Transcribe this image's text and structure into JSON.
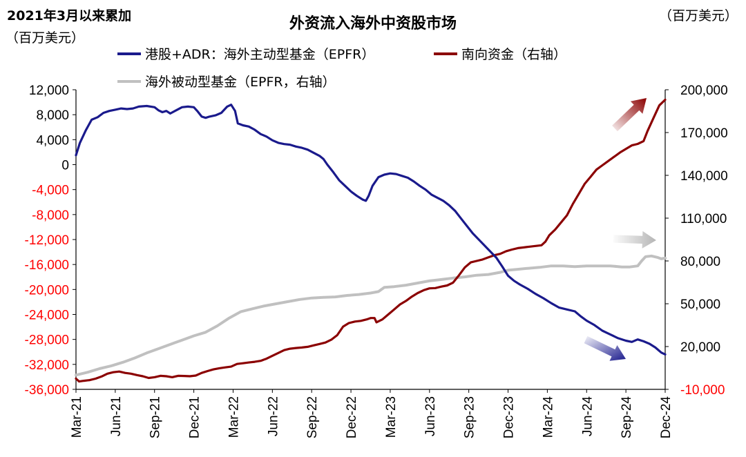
{
  "chart_data": {
    "type": "line",
    "title": "外资流入海外中资股市场",
    "left_note": "2021年3月以来累加",
    "left_unit": "（百万美元）",
    "right_unit": "（百万美元）",
    "x_labels": [
      "Mar-21",
      "Jun-21",
      "Sep-21",
      "Dec-21",
      "Mar-22",
      "Jun-22",
      "Sep-22",
      "Dec-22",
      "Mar-23",
      "Jun-23",
      "Sep-23",
      "Dec-23",
      "Mar-24",
      "Jun-24",
      "Sep-24",
      "Dec-24"
    ],
    "y_left": {
      "range": [
        -36000,
        12000
      ],
      "ticks": [
        "12,000",
        "8,000",
        "4,000",
        "0",
        "-4,000",
        "-8,000",
        "-12,000",
        "-16,000",
        "-20,000",
        "-24,000",
        "-28,000",
        "-32,000",
        "-36,000"
      ],
      "positive_color": "#000000",
      "negative_color": "#ff0000"
    },
    "y_right": {
      "range": [
        -10000,
        200000
      ],
      "ticks": [
        "200,000",
        "170,000",
        "140,000",
        "110,000",
        "80,000",
        "50,000",
        "20,000",
        "-10,000"
      ],
      "negative_color": "#ff0000"
    },
    "series": [
      {
        "name": "港股+ADR：海外主动型基金（EPFR）",
        "axis": "left",
        "color": "#1a1a8c",
        "points": [
          [
            0,
            1500
          ],
          [
            0.1,
            3500
          ],
          [
            0.25,
            5500
          ],
          [
            0.4,
            7200
          ],
          [
            0.55,
            7600
          ],
          [
            0.7,
            8300
          ],
          [
            0.85,
            8600
          ],
          [
            1.0,
            8800
          ],
          [
            1.15,
            9000
          ],
          [
            1.3,
            8900
          ],
          [
            1.45,
            9000
          ],
          [
            1.6,
            9300
          ],
          [
            1.8,
            9400
          ],
          [
            2.0,
            9200
          ],
          [
            2.1,
            8700
          ],
          [
            2.2,
            8400
          ],
          [
            2.3,
            8600
          ],
          [
            2.4,
            8200
          ],
          [
            2.55,
            8700
          ],
          [
            2.7,
            9200
          ],
          [
            2.85,
            9300
          ],
          [
            3.0,
            9200
          ],
          [
            3.1,
            8500
          ],
          [
            3.2,
            7700
          ],
          [
            3.3,
            7500
          ],
          [
            3.4,
            7700
          ],
          [
            3.55,
            7900
          ],
          [
            3.7,
            8300
          ],
          [
            3.85,
            9300
          ],
          [
            3.95,
            9600
          ],
          [
            4.05,
            8600
          ],
          [
            4.12,
            6600
          ],
          [
            4.25,
            6300
          ],
          [
            4.4,
            6100
          ],
          [
            4.55,
            5600
          ],
          [
            4.7,
            4900
          ],
          [
            4.85,
            4500
          ],
          [
            5.0,
            3900
          ],
          [
            5.15,
            3500
          ],
          [
            5.3,
            3300
          ],
          [
            5.45,
            3200
          ],
          [
            5.6,
            2900
          ],
          [
            5.75,
            2700
          ],
          [
            5.9,
            2400
          ],
          [
            6.05,
            1900
          ],
          [
            6.2,
            1400
          ],
          [
            6.3,
            900
          ],
          [
            6.4,
            0
          ],
          [
            6.55,
            -1200
          ],
          [
            6.7,
            -2500
          ],
          [
            6.85,
            -3400
          ],
          [
            7.0,
            -4300
          ],
          [
            7.15,
            -5000
          ],
          [
            7.3,
            -5600
          ],
          [
            7.38,
            -5800
          ],
          [
            7.45,
            -5000
          ],
          [
            7.55,
            -3400
          ],
          [
            7.7,
            -2000
          ],
          [
            7.85,
            -1600
          ],
          [
            8.0,
            -1400
          ],
          [
            8.15,
            -1500
          ],
          [
            8.3,
            -1800
          ],
          [
            8.45,
            -2100
          ],
          [
            8.6,
            -2700
          ],
          [
            8.75,
            -3400
          ],
          [
            8.9,
            -4000
          ],
          [
            9.05,
            -4800
          ],
          [
            9.2,
            -5300
          ],
          [
            9.35,
            -5800
          ],
          [
            9.5,
            -6500
          ],
          [
            9.65,
            -7400
          ],
          [
            9.8,
            -8600
          ],
          [
            9.95,
            -9800
          ],
          [
            10.1,
            -11000
          ],
          [
            10.3,
            -12300
          ],
          [
            10.5,
            -13600
          ],
          [
            10.7,
            -14900
          ],
          [
            10.85,
            -16300
          ],
          [
            11.0,
            -17800
          ],
          [
            11.15,
            -18600
          ],
          [
            11.3,
            -19200
          ],
          [
            11.5,
            -19900
          ],
          [
            11.7,
            -20700
          ],
          [
            11.9,
            -21400
          ],
          [
            12.1,
            -22200
          ],
          [
            12.3,
            -22900
          ],
          [
            12.5,
            -23200
          ],
          [
            12.7,
            -23500
          ],
          [
            12.85,
            -24300
          ],
          [
            13.0,
            -25000
          ],
          [
            13.2,
            -25700
          ],
          [
            13.4,
            -26600
          ],
          [
            13.6,
            -27200
          ],
          [
            13.8,
            -27800
          ],
          [
            14.0,
            -28200
          ],
          [
            14.15,
            -28400
          ],
          [
            14.3,
            -28000
          ],
          [
            14.45,
            -28300
          ],
          [
            14.6,
            -28700
          ],
          [
            14.75,
            -29300
          ],
          [
            14.9,
            -30100
          ],
          [
            15.0,
            -30400
          ]
        ]
      },
      {
        "name": "南向资金（右轴）",
        "axis": "right",
        "color": "#8b0000",
        "points": [
          [
            0,
            -2500
          ],
          [
            0.08,
            -4500
          ],
          [
            0.2,
            -4000
          ],
          [
            0.35,
            -3500
          ],
          [
            0.5,
            -2500
          ],
          [
            0.65,
            -1000
          ],
          [
            0.8,
            1000
          ],
          [
            0.95,
            2000
          ],
          [
            1.1,
            2500
          ],
          [
            1.25,
            1500
          ],
          [
            1.4,
            1000
          ],
          [
            1.55,
            0
          ],
          [
            1.7,
            -800
          ],
          [
            1.85,
            -2000
          ],
          [
            2.0,
            -1500
          ],
          [
            2.15,
            -500
          ],
          [
            2.3,
            -800
          ],
          [
            2.45,
            -1500
          ],
          [
            2.6,
            -500
          ],
          [
            2.75,
            -600
          ],
          [
            2.9,
            -800
          ],
          [
            3.05,
            -300
          ],
          [
            3.2,
            1500
          ],
          [
            3.35,
            2800
          ],
          [
            3.5,
            4000
          ],
          [
            3.65,
            4800
          ],
          [
            3.8,
            5400
          ],
          [
            3.95,
            5900
          ],
          [
            4.1,
            7800
          ],
          [
            4.25,
            8300
          ],
          [
            4.4,
            8800
          ],
          [
            4.55,
            9300
          ],
          [
            4.7,
            10000
          ],
          [
            4.85,
            11500
          ],
          [
            5.0,
            13500
          ],
          [
            5.15,
            15500
          ],
          [
            5.3,
            17500
          ],
          [
            5.45,
            18500
          ],
          [
            5.6,
            19000
          ],
          [
            5.75,
            19300
          ],
          [
            5.9,
            19800
          ],
          [
            6.05,
            20800
          ],
          [
            6.2,
            21800
          ],
          [
            6.35,
            22800
          ],
          [
            6.5,
            24800
          ],
          [
            6.65,
            28000
          ],
          [
            6.8,
            34000
          ],
          [
            6.95,
            36500
          ],
          [
            7.1,
            37500
          ],
          [
            7.25,
            38000
          ],
          [
            7.4,
            39000
          ],
          [
            7.5,
            40000
          ],
          [
            7.6,
            40000
          ],
          [
            7.65,
            37000
          ],
          [
            7.8,
            39000
          ],
          [
            7.95,
            42500
          ],
          [
            8.1,
            46000
          ],
          [
            8.25,
            49500
          ],
          [
            8.4,
            52000
          ],
          [
            8.55,
            55000
          ],
          [
            8.7,
            57500
          ],
          [
            8.85,
            59500
          ],
          [
            9.0,
            60800
          ],
          [
            9.15,
            61000
          ],
          [
            9.3,
            62000
          ],
          [
            9.45,
            62800
          ],
          [
            9.6,
            64800
          ],
          [
            9.75,
            70000
          ],
          [
            9.9,
            75500
          ],
          [
            10.05,
            79000
          ],
          [
            10.2,
            80000
          ],
          [
            10.35,
            81000
          ],
          [
            10.5,
            82500
          ],
          [
            10.65,
            84000
          ],
          [
            10.8,
            85000
          ],
          [
            10.95,
            86800
          ],
          [
            11.1,
            88000
          ],
          [
            11.25,
            89000
          ],
          [
            11.4,
            89500
          ],
          [
            11.55,
            90000
          ],
          [
            11.7,
            90500
          ],
          [
            11.85,
            91000
          ],
          [
            11.95,
            93500
          ],
          [
            12.05,
            98000
          ],
          [
            12.2,
            102000
          ],
          [
            12.35,
            107000
          ],
          [
            12.5,
            112000
          ],
          [
            12.65,
            120000
          ],
          [
            12.8,
            127000
          ],
          [
            12.95,
            134000
          ],
          [
            13.1,
            139000
          ],
          [
            13.25,
            144000
          ],
          [
            13.4,
            147000
          ],
          [
            13.55,
            150000
          ],
          [
            13.7,
            153000
          ],
          [
            13.85,
            156000
          ],
          [
            14.0,
            158500
          ],
          [
            14.15,
            161000
          ],
          [
            14.3,
            162000
          ],
          [
            14.45,
            164000
          ],
          [
            14.55,
            171000
          ],
          [
            14.7,
            180000
          ],
          [
            14.85,
            189000
          ],
          [
            15.0,
            193000
          ]
        ]
      },
      {
        "name": "海外被动型基金（EPFR，右轴）",
        "axis": "right",
        "color": "#c0c0c0",
        "points": [
          [
            0,
            0
          ],
          [
            0.3,
            2000
          ],
          [
            0.6,
            4500
          ],
          [
            0.9,
            6500
          ],
          [
            1.2,
            9000
          ],
          [
            1.5,
            12000
          ],
          [
            1.8,
            15500
          ],
          [
            2.1,
            18500
          ],
          [
            2.4,
            21500
          ],
          [
            2.7,
            24500
          ],
          [
            3.0,
            27500
          ],
          [
            3.3,
            30000
          ],
          [
            3.6,
            34500
          ],
          [
            3.9,
            40000
          ],
          [
            4.2,
            44500
          ],
          [
            4.5,
            46500
          ],
          [
            4.8,
            48500
          ],
          [
            5.1,
            50000
          ],
          [
            5.4,
            51500
          ],
          [
            5.7,
            53000
          ],
          [
            6.0,
            54000
          ],
          [
            6.3,
            54500
          ],
          [
            6.6,
            54800
          ],
          [
            6.9,
            55800
          ],
          [
            7.2,
            56500
          ],
          [
            7.5,
            57500
          ],
          [
            7.7,
            58500
          ],
          [
            7.85,
            61500
          ],
          [
            8.1,
            62000
          ],
          [
            8.4,
            63000
          ],
          [
            8.7,
            64500
          ],
          [
            9.0,
            66000
          ],
          [
            9.3,
            67000
          ],
          [
            9.6,
            68000
          ],
          [
            9.9,
            68800
          ],
          [
            10.2,
            70000
          ],
          [
            10.5,
            70500
          ],
          [
            10.8,
            72000
          ],
          [
            11.0,
            73500
          ],
          [
            11.2,
            74000
          ],
          [
            11.5,
            74800
          ],
          [
            11.8,
            75500
          ],
          [
            12.1,
            76500
          ],
          [
            12.4,
            76500
          ],
          [
            12.7,
            76000
          ],
          [
            13.0,
            76500
          ],
          [
            13.3,
            76500
          ],
          [
            13.6,
            76500
          ],
          [
            13.9,
            75800
          ],
          [
            14.1,
            75800
          ],
          [
            14.3,
            76500
          ],
          [
            14.4,
            80000
          ],
          [
            14.5,
            83000
          ],
          [
            14.65,
            83500
          ],
          [
            14.8,
            82500
          ],
          [
            14.9,
            81500
          ],
          [
            15.0,
            82000
          ]
        ]
      }
    ],
    "arrows": [
      {
        "series": "南向资金（右轴）",
        "direction": "up",
        "color": "#8b0000"
      },
      {
        "series": "海外被动型基金（EPFR，右轴）",
        "direction": "right",
        "color": "#b5b5b5"
      },
      {
        "series": "港股+ADR：海外主动型基金（EPFR）",
        "direction": "down",
        "color": "#1a1a8c"
      }
    ],
    "grid": false,
    "legend_position": "top"
  }
}
